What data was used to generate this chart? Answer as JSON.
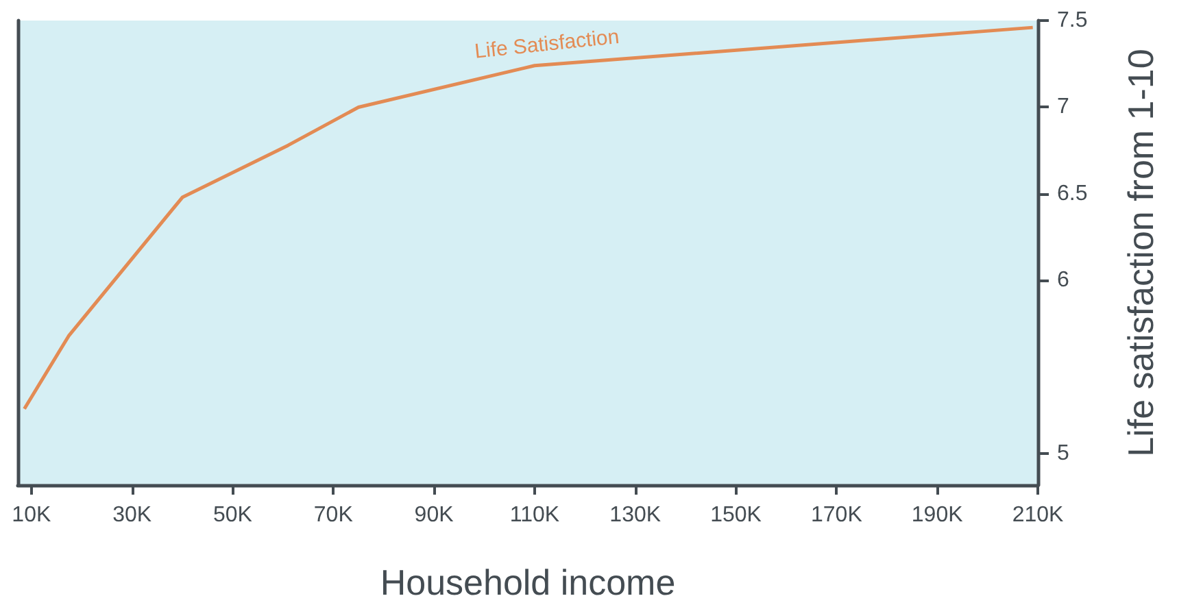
{
  "chart_data": {
    "type": "line",
    "xlabel": "Household income",
    "ylabel": "Life satisfaction from 1-10",
    "x": [
      8600,
      17400,
      40000,
      61000,
      75000,
      110000,
      209000
    ],
    "series": [
      {
        "name": "Life Satisfaction",
        "color": "#e38b54",
        "values": [
          5.26,
          5.68,
          6.48,
          6.78,
          7.0,
          7.24,
          7.46
        ]
      }
    ],
    "xlim": [
      7300,
      210000
    ],
    "xticks": [
      {
        "value": 10000,
        "label": "10K"
      },
      {
        "value": 30000,
        "label": "30K"
      },
      {
        "value": 50000,
        "label": "50K"
      },
      {
        "value": 70000,
        "label": "70K"
      },
      {
        "value": 90000,
        "label": "90K"
      },
      {
        "value": 110000,
        "label": "110K"
      },
      {
        "value": 130000,
        "label": "130K"
      },
      {
        "value": 150000,
        "label": "150K"
      },
      {
        "value": 170000,
        "label": "170K"
      },
      {
        "value": 190000,
        "label": "190K"
      },
      {
        "value": 210000,
        "label": "210K"
      }
    ],
    "ylim": [
      4.82,
      7.5
    ],
    "yticks": [
      5,
      6,
      6.5,
      7,
      7.5
    ],
    "grid": false,
    "legend": false,
    "marker": "none",
    "line_style": "solid"
  }
}
